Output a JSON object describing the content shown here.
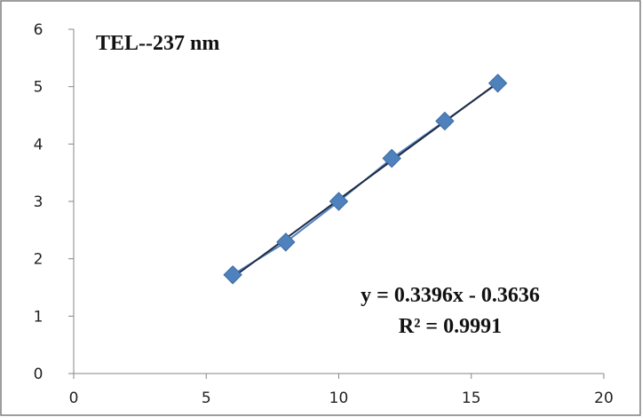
{
  "chart_data": {
    "type": "scatter",
    "title": "TEL--237 nm",
    "xlabel": "",
    "ylabel": "",
    "xlim": [
      0,
      20
    ],
    "ylim": [
      0,
      6
    ],
    "xticks": [
      "0",
      "5",
      "10",
      "15",
      "20"
    ],
    "yticks": [
      "0",
      "1",
      "2",
      "3",
      "4",
      "5",
      "6"
    ],
    "grid": false,
    "legend": "none",
    "marker_color": "#4f81bd",
    "trendline_color": "#1f2a44",
    "series": [
      {
        "x": [
          6,
          8,
          10,
          12,
          14,
          16
        ],
        "y": [
          1.72,
          2.29,
          3.0,
          3.75,
          4.4,
          5.06
        ]
      }
    ],
    "trendline": {
      "slope": 0.3396,
      "intercept": -0.3636
    },
    "annotations": {
      "equation": "y = 0.3396x - 0.3636",
      "r_squared": "R² = 0.9991"
    }
  }
}
